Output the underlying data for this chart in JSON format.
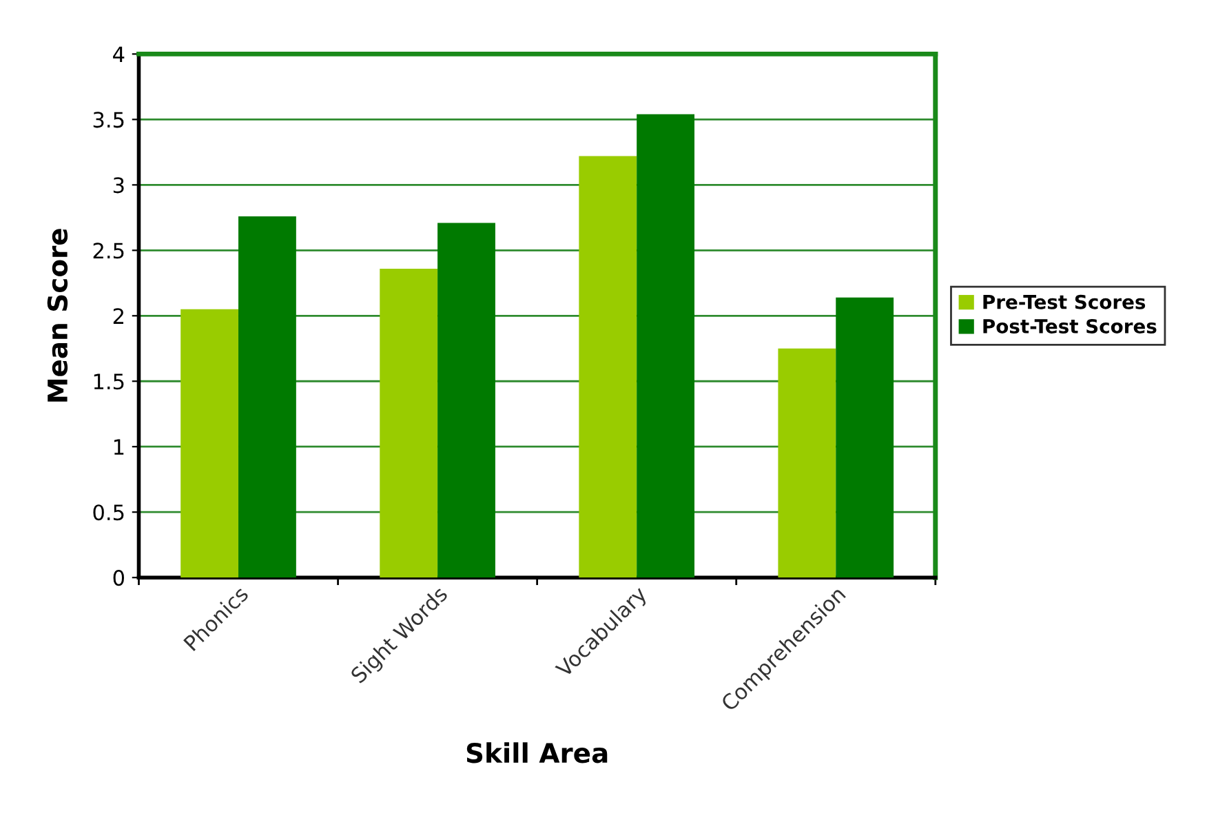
{
  "chart_data": {
    "type": "bar",
    "xlabel": "Skill Area",
    "ylabel": "Mean Score",
    "categories": [
      "Phonics",
      "Sight Words",
      "Vocabulary",
      "Comprehension"
    ],
    "series": [
      {
        "name": "Pre-Test Scores",
        "color": "#99cc00",
        "values": [
          2.05,
          2.36,
          3.22,
          1.75
        ]
      },
      {
        "name": "Post-Test Scores",
        "color": "#007a00",
        "values": [
          2.76,
          2.71,
          3.54,
          2.14
        ]
      }
    ],
    "ylim": [
      0,
      4
    ],
    "yticks": [
      0,
      0.5,
      1,
      1.5,
      2,
      2.5,
      3,
      3.5,
      4
    ],
    "grid": "y",
    "legend": "right"
  }
}
